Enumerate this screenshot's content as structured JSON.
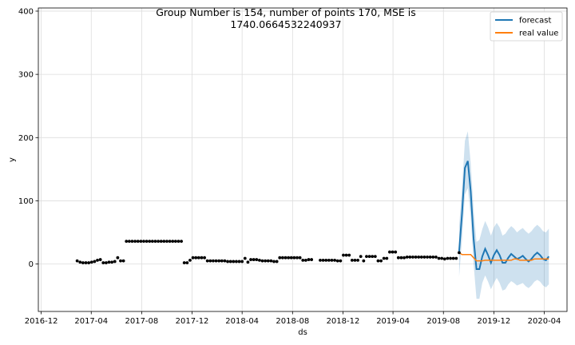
{
  "chart_data": {
    "type": "line",
    "title_lines": [
      "Group Number is 154, number of points 170, MSE is",
      "1740.0664532240937"
    ],
    "xlabel": "ds",
    "ylabel": "y",
    "xlim": [
      "2016-11-24",
      "2020-05-26"
    ],
    "ylim": [
      -75,
      405
    ],
    "x_ticks": [
      "2016-12",
      "2017-04",
      "2017-08",
      "2017-12",
      "2018-04",
      "2018-08",
      "2018-12",
      "2019-04",
      "2019-08",
      "2019-12",
      "2020-04"
    ],
    "y_ticks": [
      0,
      100,
      200,
      300,
      400
    ],
    "grid": true,
    "legend_position": "top-right",
    "colors": {
      "forecast": "#1f77b4",
      "real_value": "#ff7f0e",
      "band": "#1f77b4",
      "observed": "#000000"
    },
    "legend": [
      {
        "key": "forecast",
        "label": "forecast"
      },
      {
        "key": "real_value",
        "label": "real value"
      }
    ],
    "observed_points": [
      [
        "2017-02-26",
        5
      ],
      [
        "2017-03-05",
        3
      ],
      [
        "2017-03-12",
        2
      ],
      [
        "2017-03-19",
        2
      ],
      [
        "2017-03-26",
        2
      ],
      [
        "2017-04-02",
        3
      ],
      [
        "2017-04-09",
        4
      ],
      [
        "2017-04-16",
        6
      ],
      [
        "2017-04-23",
        7
      ],
      [
        "2017-04-30",
        2
      ],
      [
        "2017-05-07",
        2
      ],
      [
        "2017-05-14",
        3
      ],
      [
        "2017-05-21",
        3
      ],
      [
        "2017-05-28",
        4
      ],
      [
        "2017-06-04",
        10
      ],
      [
        "2017-06-11",
        5
      ],
      [
        "2017-06-18",
        5
      ],
      [
        "2017-06-25",
        36
      ],
      [
        "2017-07-02",
        36
      ],
      [
        "2017-07-09",
        36
      ],
      [
        "2017-07-16",
        36
      ],
      [
        "2017-07-23",
        36
      ],
      [
        "2017-07-30",
        36
      ],
      [
        "2017-08-06",
        36
      ],
      [
        "2017-08-13",
        36
      ],
      [
        "2017-08-20",
        36
      ],
      [
        "2017-08-27",
        36
      ],
      [
        "2017-09-03",
        36
      ],
      [
        "2017-09-10",
        36
      ],
      [
        "2017-09-17",
        36
      ],
      [
        "2017-09-24",
        36
      ],
      [
        "2017-10-01",
        36
      ],
      [
        "2017-10-08",
        36
      ],
      [
        "2017-10-15",
        36
      ],
      [
        "2017-10-22",
        36
      ],
      [
        "2017-10-29",
        36
      ],
      [
        "2017-11-05",
        36
      ],
      [
        "2017-11-12",
        2
      ],
      [
        "2017-11-19",
        2
      ],
      [
        "2017-11-26",
        6
      ],
      [
        "2017-12-03",
        10
      ],
      [
        "2017-12-10",
        10
      ],
      [
        "2017-12-17",
        10
      ],
      [
        "2017-12-24",
        10
      ],
      [
        "2017-12-31",
        10
      ],
      [
        "2018-01-07",
        5
      ],
      [
        "2018-01-14",
        5
      ],
      [
        "2018-01-21",
        5
      ],
      [
        "2018-01-28",
        5
      ],
      [
        "2018-02-04",
        5
      ],
      [
        "2018-02-11",
        5
      ],
      [
        "2018-02-18",
        5
      ],
      [
        "2018-02-25",
        4
      ],
      [
        "2018-03-04",
        4
      ],
      [
        "2018-03-11",
        4
      ],
      [
        "2018-03-18",
        4
      ],
      [
        "2018-03-25",
        4
      ],
      [
        "2018-04-01",
        4
      ],
      [
        "2018-04-08",
        9
      ],
      [
        "2018-04-15",
        3
      ],
      [
        "2018-04-22",
        7
      ],
      [
        "2018-04-29",
        7
      ],
      [
        "2018-05-06",
        7
      ],
      [
        "2018-05-13",
        6
      ],
      [
        "2018-05-20",
        5
      ],
      [
        "2018-05-27",
        5
      ],
      [
        "2018-06-03",
        5
      ],
      [
        "2018-06-10",
        5
      ],
      [
        "2018-06-17",
        4
      ],
      [
        "2018-06-24",
        4
      ],
      [
        "2018-07-01",
        10
      ],
      [
        "2018-07-08",
        10
      ],
      [
        "2018-07-15",
        10
      ],
      [
        "2018-07-22",
        10
      ],
      [
        "2018-07-29",
        10
      ],
      [
        "2018-08-05",
        10
      ],
      [
        "2018-08-12",
        10
      ],
      [
        "2018-08-19",
        10
      ],
      [
        "2018-08-26",
        6
      ],
      [
        "2018-09-02",
        6
      ],
      [
        "2018-09-09",
        7
      ],
      [
        "2018-09-16",
        7
      ],
      [
        "2018-10-07",
        6
      ],
      [
        "2018-10-14",
        6
      ],
      [
        "2018-10-21",
        6
      ],
      [
        "2018-10-28",
        6
      ],
      [
        "2018-11-04",
        6
      ],
      [
        "2018-11-11",
        6
      ],
      [
        "2018-11-18",
        5
      ],
      [
        "2018-11-25",
        5
      ],
      [
        "2018-12-02",
        14
      ],
      [
        "2018-12-09",
        14
      ],
      [
        "2018-12-16",
        14
      ],
      [
        "2018-12-23",
        6
      ],
      [
        "2018-12-30",
        6
      ],
      [
        "2019-01-06",
        6
      ],
      [
        "2019-01-13",
        12
      ],
      [
        "2019-01-20",
        5
      ],
      [
        "2019-01-27",
        12
      ],
      [
        "2019-02-03",
        12
      ],
      [
        "2019-02-10",
        12
      ],
      [
        "2019-02-17",
        12
      ],
      [
        "2019-02-24",
        5
      ],
      [
        "2019-03-03",
        5
      ],
      [
        "2019-03-10",
        9
      ],
      [
        "2019-03-17",
        9
      ],
      [
        "2019-03-24",
        19
      ],
      [
        "2019-03-31",
        19
      ],
      [
        "2019-04-07",
        19
      ],
      [
        "2019-04-14",
        10
      ],
      [
        "2019-04-21",
        10
      ],
      [
        "2019-04-28",
        10
      ],
      [
        "2019-05-05",
        11
      ],
      [
        "2019-05-12",
        11
      ],
      [
        "2019-05-19",
        11
      ],
      [
        "2019-05-26",
        11
      ],
      [
        "2019-06-02",
        11
      ],
      [
        "2019-06-09",
        11
      ],
      [
        "2019-06-16",
        11
      ],
      [
        "2019-06-23",
        11
      ],
      [
        "2019-06-30",
        11
      ],
      [
        "2019-07-07",
        11
      ],
      [
        "2019-07-14",
        11
      ],
      [
        "2019-07-21",
        9
      ],
      [
        "2019-07-28",
        9
      ],
      [
        "2019-08-04",
        8
      ],
      [
        "2019-08-11",
        9
      ],
      [
        "2019-08-18",
        9
      ],
      [
        "2019-08-25",
        9
      ],
      [
        "2019-09-01",
        9
      ],
      [
        "2019-09-08",
        18
      ]
    ],
    "forecast": [
      [
        "2019-09-08",
        20
      ],
      [
        "2019-09-15",
        80
      ],
      [
        "2019-09-22",
        152
      ],
      [
        "2019-09-29",
        163
      ],
      [
        "2019-10-06",
        115
      ],
      [
        "2019-10-13",
        40
      ],
      [
        "2019-10-20",
        -8
      ],
      [
        "2019-10-27",
        -8
      ],
      [
        "2019-11-03",
        12
      ],
      [
        "2019-11-10",
        24
      ],
      [
        "2019-11-17",
        14
      ],
      [
        "2019-11-24",
        2
      ],
      [
        "2019-12-01",
        14
      ],
      [
        "2019-12-08",
        22
      ],
      [
        "2019-12-15",
        14
      ],
      [
        "2019-12-22",
        2
      ],
      [
        "2019-12-29",
        2
      ],
      [
        "2020-01-05",
        10
      ],
      [
        "2020-01-12",
        16
      ],
      [
        "2020-01-19",
        12
      ],
      [
        "2020-01-26",
        8
      ],
      [
        "2020-02-02",
        10
      ],
      [
        "2020-02-09",
        13
      ],
      [
        "2020-02-16",
        8
      ],
      [
        "2020-02-23",
        4
      ],
      [
        "2020-03-01",
        8
      ],
      [
        "2020-03-08",
        14
      ],
      [
        "2020-03-15",
        18
      ],
      [
        "2020-03-22",
        14
      ],
      [
        "2020-03-29",
        8
      ],
      [
        "2020-04-05",
        6
      ],
      [
        "2020-04-12",
        12
      ]
    ],
    "forecast_lower": [
      [
        "2019-09-08",
        -20
      ],
      [
        "2019-09-15",
        40
      ],
      [
        "2019-09-22",
        110
      ],
      [
        "2019-09-29",
        120
      ],
      [
        "2019-10-06",
        75
      ],
      [
        "2019-10-13",
        0
      ],
      [
        "2019-10-20",
        -55
      ],
      [
        "2019-10-27",
        -55
      ],
      [
        "2019-11-03",
        -30
      ],
      [
        "2019-11-10",
        -18
      ],
      [
        "2019-11-17",
        -28
      ],
      [
        "2019-11-24",
        -40
      ],
      [
        "2019-12-01",
        -30
      ],
      [
        "2019-12-08",
        -22
      ],
      [
        "2019-12-15",
        -30
      ],
      [
        "2019-12-22",
        -42
      ],
      [
        "2019-12-29",
        -40
      ],
      [
        "2020-01-05",
        -32
      ],
      [
        "2020-01-12",
        -27
      ],
      [
        "2020-01-19",
        -30
      ],
      [
        "2020-01-26",
        -34
      ],
      [
        "2020-02-02",
        -32
      ],
      [
        "2020-02-09",
        -30
      ],
      [
        "2020-02-16",
        -35
      ],
      [
        "2020-02-23",
        -38
      ],
      [
        "2020-03-01",
        -34
      ],
      [
        "2020-03-08",
        -28
      ],
      [
        "2020-03-15",
        -25
      ],
      [
        "2020-03-22",
        -28
      ],
      [
        "2020-03-29",
        -34
      ],
      [
        "2020-04-05",
        -37
      ],
      [
        "2020-04-12",
        -32
      ]
    ],
    "forecast_upper": [
      [
        "2019-09-08",
        60
      ],
      [
        "2019-09-15",
        120
      ],
      [
        "2019-09-22",
        195
      ],
      [
        "2019-09-29",
        210
      ],
      [
        "2019-10-06",
        160
      ],
      [
        "2019-10-13",
        85
      ],
      [
        "2019-10-20",
        35
      ],
      [
        "2019-10-27",
        38
      ],
      [
        "2019-11-03",
        55
      ],
      [
        "2019-11-10",
        68
      ],
      [
        "2019-11-17",
        58
      ],
      [
        "2019-11-24",
        45
      ],
      [
        "2019-12-01",
        58
      ],
      [
        "2019-12-08",
        65
      ],
      [
        "2019-12-15",
        58
      ],
      [
        "2019-12-22",
        45
      ],
      [
        "2019-12-29",
        48
      ],
      [
        "2020-01-05",
        55
      ],
      [
        "2020-01-12",
        60
      ],
      [
        "2020-01-19",
        56
      ],
      [
        "2020-01-26",
        50
      ],
      [
        "2020-02-02",
        54
      ],
      [
        "2020-02-09",
        57
      ],
      [
        "2020-02-16",
        52
      ],
      [
        "2020-02-23",
        48
      ],
      [
        "2020-03-01",
        52
      ],
      [
        "2020-03-08",
        58
      ],
      [
        "2020-03-15",
        62
      ],
      [
        "2020-03-22",
        58
      ],
      [
        "2020-03-29",
        52
      ],
      [
        "2020-04-05",
        50
      ],
      [
        "2020-04-12",
        56
      ]
    ],
    "real_value": [
      [
        "2019-09-08",
        18
      ],
      [
        "2019-09-15",
        15
      ],
      [
        "2019-09-22",
        15
      ],
      [
        "2019-09-29",
        15
      ],
      [
        "2019-10-06",
        15
      ],
      [
        "2019-10-13",
        10
      ],
      [
        "2019-10-20",
        5
      ],
      [
        "2019-10-27",
        5
      ],
      [
        "2019-11-03",
        5
      ],
      [
        "2019-11-10",
        6
      ],
      [
        "2019-11-17",
        6
      ],
      [
        "2019-11-24",
        6
      ],
      [
        "2019-12-01",
        6
      ],
      [
        "2019-12-08",
        6
      ],
      [
        "2019-12-15",
        6
      ],
      [
        "2019-12-22",
        6
      ],
      [
        "2019-12-29",
        6
      ],
      [
        "2020-01-05",
        6
      ],
      [
        "2020-01-12",
        6
      ],
      [
        "2020-01-19",
        8
      ],
      [
        "2020-01-26",
        8
      ],
      [
        "2020-02-02",
        6
      ],
      [
        "2020-02-09",
        6
      ],
      [
        "2020-02-16",
        6
      ],
      [
        "2020-02-23",
        6
      ],
      [
        "2020-03-01",
        6
      ],
      [
        "2020-03-08",
        8
      ],
      [
        "2020-03-15",
        8
      ],
      [
        "2020-03-22",
        8
      ],
      [
        "2020-03-29",
        8
      ],
      [
        "2020-04-05",
        8
      ],
      [
        "2020-04-12",
        8
      ]
    ]
  }
}
